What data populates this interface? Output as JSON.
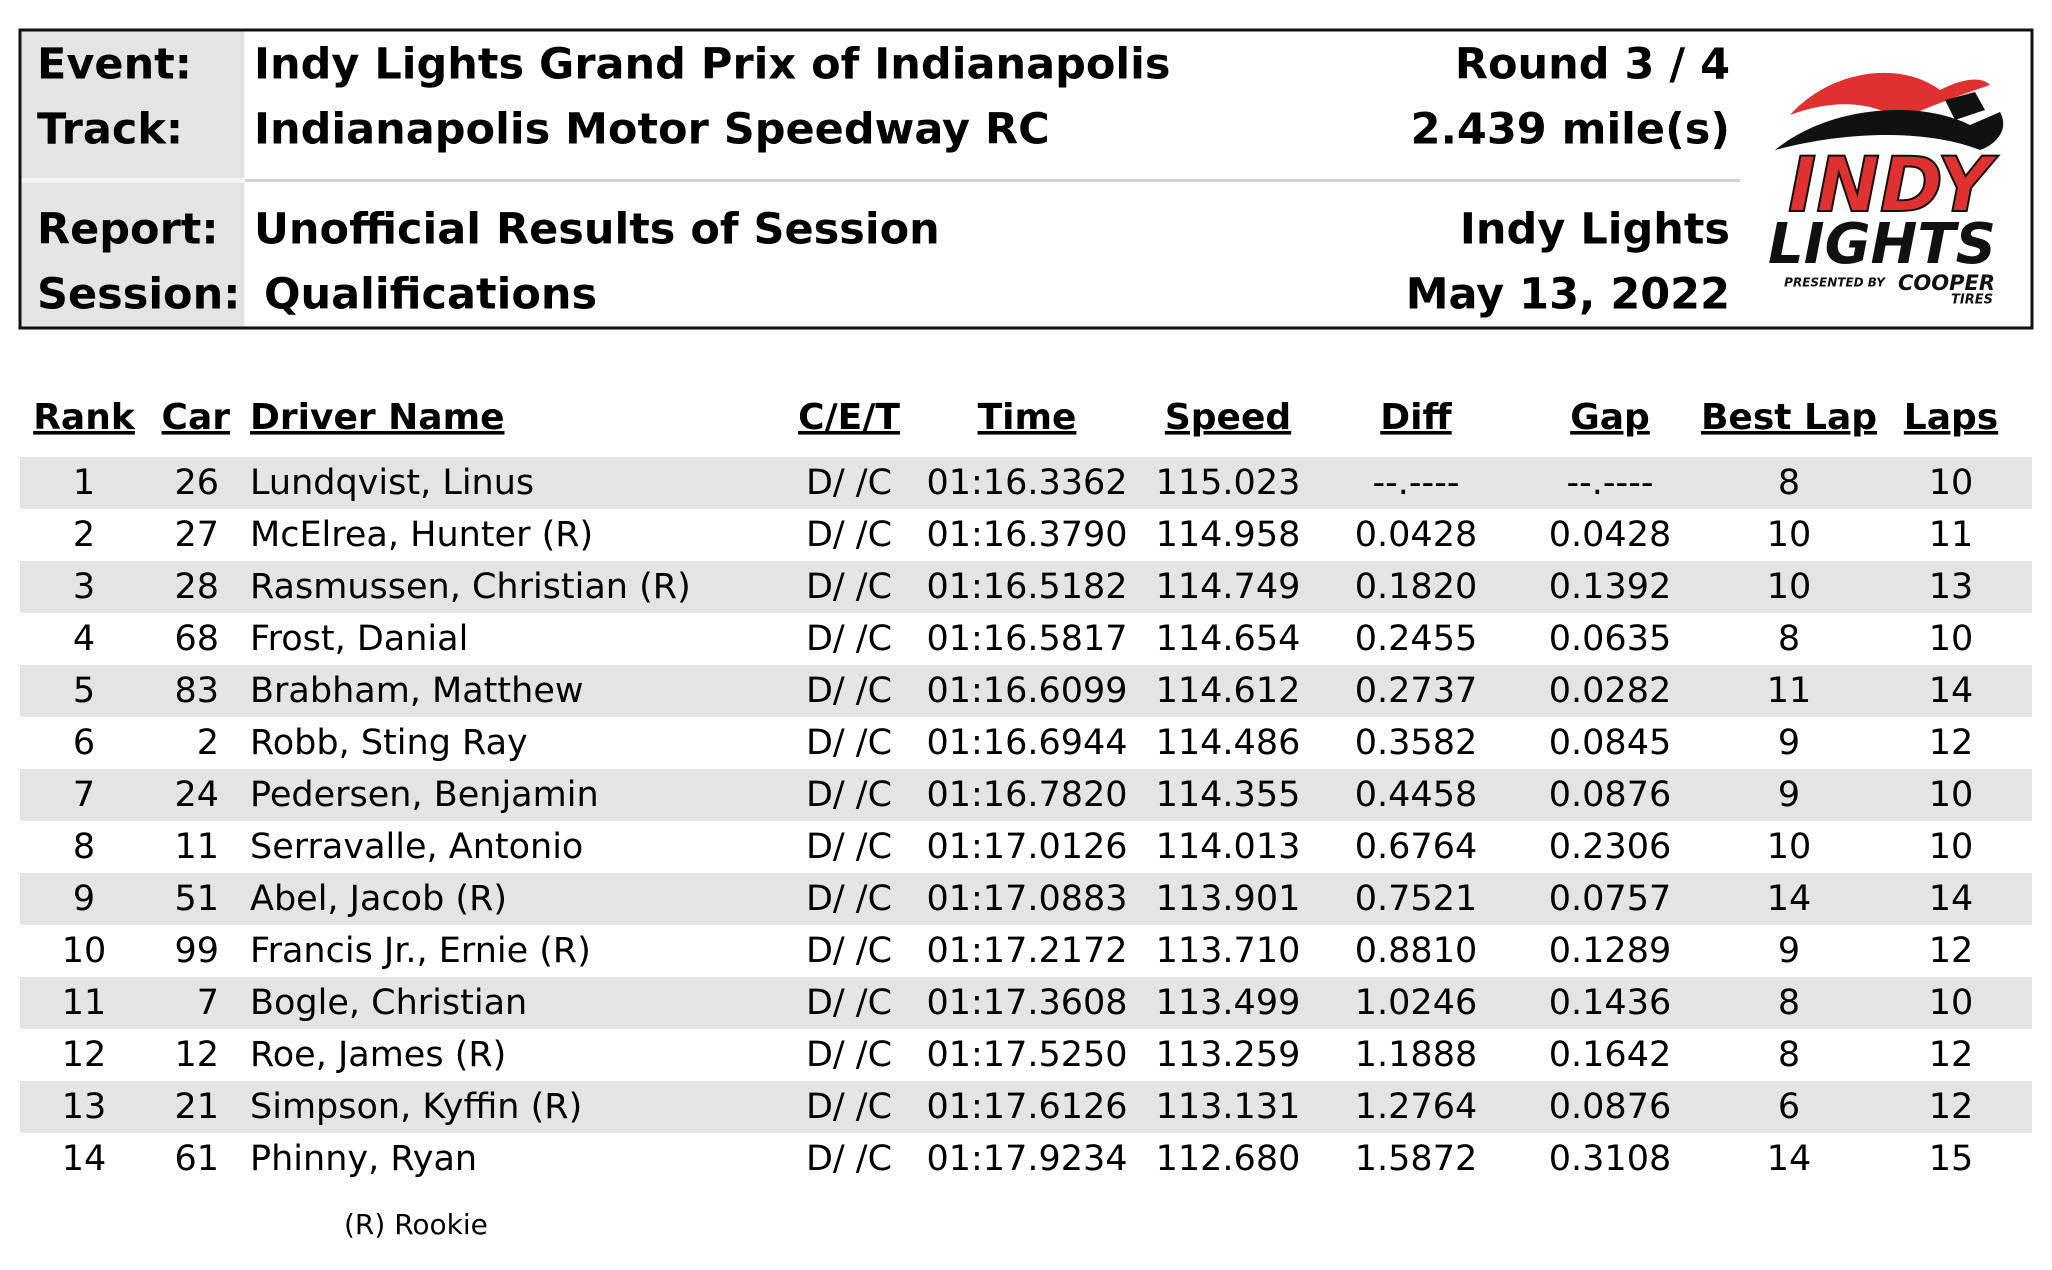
{
  "header": {
    "labels": [
      "Event:",
      "Track:",
      "Report:",
      "Session:"
    ],
    "values": [
      "Indy Lights Grand Prix of Indianapolis",
      "Indianapolis Motor Speedway RC",
      "Unofficial Results of Session",
      "Qualifications"
    ],
    "right": [
      "Round 3 / 4",
      "2.439 mile(s)",
      "Indy Lights",
      "May 13, 2022"
    ]
  },
  "logo": {
    "top": "INDY",
    "bottom": "LIGHTS",
    "presented": "PRESENTED BY",
    "sponsor": "COOPER",
    "sponsor_sub": "TIRES"
  },
  "table": {
    "columns": [
      "Rank",
      "Car",
      "Driver Name",
      "C/E/T",
      "Time",
      "Speed",
      "Diff",
      "Gap",
      "Best Lap",
      "Laps"
    ],
    "rows": [
      [
        "1",
        "26",
        "Lundqvist, Linus",
        "D/ /C",
        "01:16.3362",
        "115.023",
        "--.----",
        "--.----",
        "8",
        "10"
      ],
      [
        "2",
        "27",
        "McElrea, Hunter (R)",
        "D/ /C",
        "01:16.3790",
        "114.958",
        "0.0428",
        "0.0428",
        "10",
        "11"
      ],
      [
        "3",
        "28",
        "Rasmussen, Christian (R)",
        "D/ /C",
        "01:16.5182",
        "114.749",
        "0.1820",
        "0.1392",
        "10",
        "13"
      ],
      [
        "4",
        "68",
        "Frost, Danial",
        "D/ /C",
        "01:16.5817",
        "114.654",
        "0.2455",
        "0.0635",
        "8",
        "10"
      ],
      [
        "5",
        "83",
        "Brabham, Matthew",
        "D/ /C",
        "01:16.6099",
        "114.612",
        "0.2737",
        "0.0282",
        "11",
        "14"
      ],
      [
        "6",
        "2",
        "Robb, Sting Ray",
        "D/ /C",
        "01:16.6944",
        "114.486",
        "0.3582",
        "0.0845",
        "9",
        "12"
      ],
      [
        "7",
        "24",
        "Pedersen, Benjamin",
        "D/ /C",
        "01:16.7820",
        "114.355",
        "0.4458",
        "0.0876",
        "9",
        "10"
      ],
      [
        "8",
        "11",
        "Serravalle, Antonio",
        "D/ /C",
        "01:17.0126",
        "114.013",
        "0.6764",
        "0.2306",
        "10",
        "10"
      ],
      [
        "9",
        "51",
        "Abel, Jacob (R)",
        "D/ /C",
        "01:17.0883",
        "113.901",
        "0.7521",
        "0.0757",
        "14",
        "14"
      ],
      [
        "10",
        "99",
        "Francis Jr., Ernie (R)",
        "D/ /C",
        "01:17.2172",
        "113.710",
        "0.8810",
        "0.1289",
        "9",
        "12"
      ],
      [
        "11",
        "7",
        "Bogle, Christian",
        "D/ /C",
        "01:17.3608",
        "113.499",
        "1.0246",
        "0.1436",
        "8",
        "10"
      ],
      [
        "12",
        "12",
        "Roe, James (R)",
        "D/ /C",
        "01:17.5250",
        "113.259",
        "1.1888",
        "0.1642",
        "8",
        "12"
      ],
      [
        "13",
        "21",
        "Simpson, Kyffin (R)",
        "D/ /C",
        "01:17.6126",
        "113.131",
        "1.2764",
        "0.0876",
        "6",
        "12"
      ],
      [
        "14",
        "61",
        "Phinny, Ryan",
        "D/ /C",
        "01:17.9234",
        "112.680",
        "1.5872",
        "0.3108",
        "14",
        "15"
      ]
    ]
  },
  "footnote": "(R) Rookie"
}
